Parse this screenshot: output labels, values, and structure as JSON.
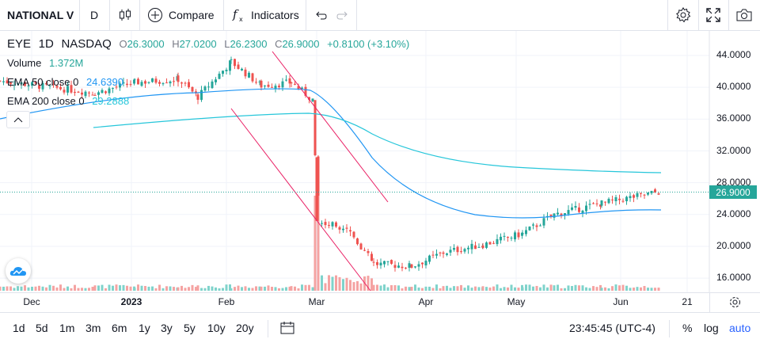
{
  "toolbar": {
    "symbol": "NATIONAL V",
    "interval": "D",
    "compare_label": "Compare",
    "indicators_label": "Indicators"
  },
  "legend": {
    "ticker": "EYE",
    "interval": "1D",
    "exchange": "NASDAQ",
    "o_label": "O",
    "o_value": "26.3000",
    "h_label": "H",
    "h_value": "27.0200",
    "l_label": "L",
    "l_value": "26.2300",
    "c_label": "C",
    "c_value": "26.9000",
    "change": "+0.8100 (+3.10%)",
    "volume_label": "Volume",
    "volume_value": "1.372M",
    "ema50_label": "EMA 50 close 0",
    "ema50_value": "24.6390",
    "ema200_label": "EMA 200 close 0",
    "ema200_value": "29.2888"
  },
  "price_axis": [
    "44.0000",
    "40.0000",
    "36.0000",
    "32.0000",
    "28.0000",
    "24.0000",
    "20.0000",
    "16.0000"
  ],
  "last_price": "26.9000",
  "time_axis": [
    "Dec",
    "2023",
    "Feb",
    "Mar",
    "Apr",
    "May",
    "Jun",
    "21"
  ],
  "ranges": [
    "1d",
    "5d",
    "1m",
    "3m",
    "6m",
    "1y",
    "3y",
    "5y",
    "10y",
    "20y"
  ],
  "clock": "23:45:45 (UTC-4)",
  "scale_options": {
    "percent": "%",
    "log": "log",
    "auto": "auto"
  },
  "colors": {
    "up": "#26a69a",
    "down": "#ef5350",
    "ema50": "#2196f3",
    "ema200": "#26c6da",
    "trendline": "#e91e63"
  }
}
